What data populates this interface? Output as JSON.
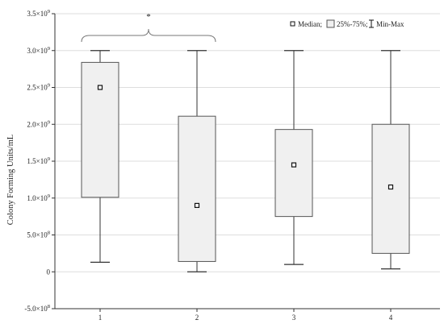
{
  "chart_data": {
    "type": "box",
    "ylabel": "Colony Forming Units/mL",
    "categories": [
      "1",
      "2",
      "3",
      "4"
    ],
    "y_ticks": [
      {
        "value": -500000000,
        "mantissa": "-5.0",
        "exp": "8"
      },
      {
        "value": 0,
        "mantissa": "0",
        "exp": ""
      },
      {
        "value": 500000000,
        "mantissa": "5.0",
        "exp": "8"
      },
      {
        "value": 1000000000,
        "mantissa": "1.0",
        "exp": "9"
      },
      {
        "value": 1500000000,
        "mantissa": "1.5",
        "exp": "9"
      },
      {
        "value": 2000000000,
        "mantissa": "2.0",
        "exp": "9"
      },
      {
        "value": 2500000000,
        "mantissa": "2.5",
        "exp": "9"
      },
      {
        "value": 3000000000,
        "mantissa": "3.0",
        "exp": "9"
      },
      {
        "value": 3500000000,
        "mantissa": "3.5",
        "exp": "9"
      }
    ],
    "ylim": [
      -500000000,
      3500000000
    ],
    "grid": true,
    "boxes": [
      {
        "category": "1",
        "min": 130000000,
        "q1": 1010000000,
        "median": 2500000000,
        "q3": 2840000000,
        "max": 3000000000
      },
      {
        "category": "2",
        "min": 0,
        "q1": 140000000,
        "median": 900000000,
        "q3": 2110000000,
        "max": 3000000000
      },
      {
        "category": "3",
        "min": 100000000,
        "q1": 750000000,
        "median": 1450000000,
        "q3": 1930000000,
        "max": 3000000000
      },
      {
        "category": "4",
        "min": 40000000,
        "q1": 250000000,
        "median": 1150000000,
        "q3": 2000000000,
        "max": 3000000000
      }
    ],
    "legend": {
      "position": "top-right",
      "median_label": "Median;",
      "box_label": "25%-75%;",
      "whisker_label": "Min-Max"
    },
    "annotation": {
      "text": "*",
      "brace_from": "1",
      "brace_to": "2"
    },
    "colors": {
      "box_fill": "#f0f0f0",
      "stroke": "#333333",
      "grid": "#dddddd"
    }
  }
}
